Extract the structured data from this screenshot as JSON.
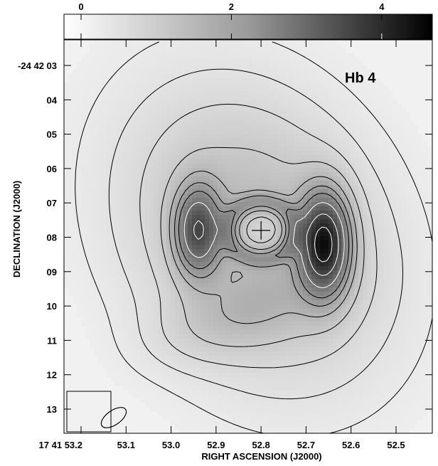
{
  "chart_data": {
    "type": "heatmap",
    "title": "",
    "source_label": "Hb 4",
    "xlabel": "RIGHT ASCENSION (J2000)",
    "ylabel": "DECLINATION (J2000)",
    "x_ticks": [
      {
        "value": "17 41 53.2",
        "ra_s": 53.2
      },
      {
        "value": "53.1",
        "ra_s": 53.1
      },
      {
        "value": "53.0",
        "ra_s": 53.0
      },
      {
        "value": "52.9",
        "ra_s": 52.9
      },
      {
        "value": "52.8",
        "ra_s": 52.8
      },
      {
        "value": "52.7",
        "ra_s": 52.7
      },
      {
        "value": "52.6",
        "ra_s": 52.6
      },
      {
        "value": "52.5",
        "ra_s": 52.5
      }
    ],
    "y_ticks": [
      {
        "value": "-24 42 03",
        "dec_s": 3
      },
      {
        "value": "04",
        "dec_s": 4
      },
      {
        "value": "05",
        "dec_s": 5
      },
      {
        "value": "06",
        "dec_s": 6
      },
      {
        "value": "07",
        "dec_s": 7
      },
      {
        "value": "08",
        "dec_s": 8
      },
      {
        "value": "09",
        "dec_s": 9
      },
      {
        "value": "10",
        "dec_s": 10
      },
      {
        "value": "11",
        "dec_s": 11
      },
      {
        "value": "12",
        "dec_s": 12
      },
      {
        "value": "13",
        "dec_s": 13
      }
    ],
    "xlim_ra_s": [
      53.2,
      52.43
    ],
    "ylim_dec_s": [
      2.25,
      13.8
    ],
    "colorbar": {
      "orientation": "top",
      "range": [
        0,
        4.9
      ],
      "tick_labels": [
        {
          "label": "0",
          "value": 0
        },
        {
          "label": "2",
          "value": 2
        },
        {
          "label": "4",
          "value": 4
        }
      ],
      "colormap": "white-to-black"
    },
    "center_marker": {
      "ra_s": 52.8,
      "dec_s": 7.8
    },
    "beam": {
      "major_arcsec": 1.0,
      "minor_arcsec": 0.55,
      "pa_deg": 35,
      "ra_s": 53.14,
      "dec_s": 13.0
    },
    "emission_peaks": [
      {
        "name": "east lobe",
        "ra_s": 52.94,
        "dec_s": 7.8,
        "intensity": 3.6
      },
      {
        "name": "west lobe",
        "ra_s": 52.66,
        "dec_s": 8.1,
        "intensity": 4.8
      },
      {
        "name": "central ring",
        "ra_s": 52.8,
        "dec_s": 7.8,
        "intensity": 1.3
      }
    ],
    "contour_levels_black": [
      0.15,
      0.3,
      0.5,
      0.8,
      1.2,
      1.6,
      2.0
    ],
    "contour_levels_white": [
      2.6,
      3.4,
      4.2
    ],
    "grid": false
  }
}
